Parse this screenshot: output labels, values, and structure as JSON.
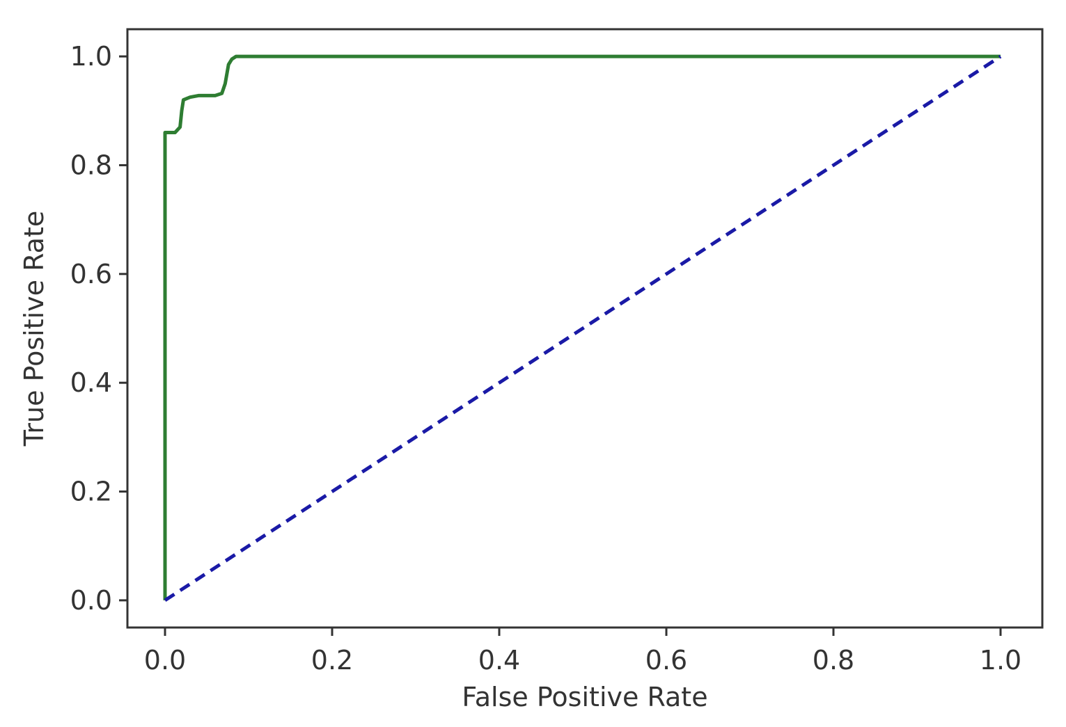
{
  "chart_data": {
    "type": "line",
    "title": "",
    "xlabel": "False Positive Rate",
    "ylabel": "True Positive Rate",
    "xlim": [
      -0.045,
      1.05
    ],
    "ylim": [
      -0.05,
      1.05
    ],
    "x_ticks": [
      0.0,
      0.2,
      0.4,
      0.6,
      0.8,
      1.0
    ],
    "x_tick_labels": [
      "0.0",
      "0.2",
      "0.4",
      "0.6",
      "0.8",
      "1.0"
    ],
    "y_ticks": [
      0.0,
      0.2,
      0.4,
      0.6,
      0.8,
      1.0
    ],
    "y_tick_labels": [
      "0.0",
      "0.2",
      "0.4",
      "0.6",
      "0.8",
      "1.0"
    ],
    "grid": false,
    "series": [
      {
        "color": "#2e7d32",
        "style": "solid",
        "x": [
          0.0,
          0.0,
          0.012,
          0.018,
          0.02,
          0.022,
          0.03,
          0.04,
          0.05,
          0.06,
          0.068,
          0.072,
          0.076,
          0.08,
          0.085,
          0.1,
          0.3,
          0.5,
          0.7,
          0.9,
          1.0
        ],
        "y": [
          0.0,
          0.86,
          0.86,
          0.87,
          0.9,
          0.92,
          0.925,
          0.928,
          0.928,
          0.928,
          0.932,
          0.95,
          0.985,
          0.995,
          1.0,
          1.0,
          1.0,
          1.0,
          1.0,
          1.0,
          1.0
        ]
      },
      {
        "color": "#1a1aa6",
        "style": "dashed",
        "x": [
          0.0,
          1.0
        ],
        "y": [
          0.0,
          1.0
        ]
      }
    ]
  }
}
